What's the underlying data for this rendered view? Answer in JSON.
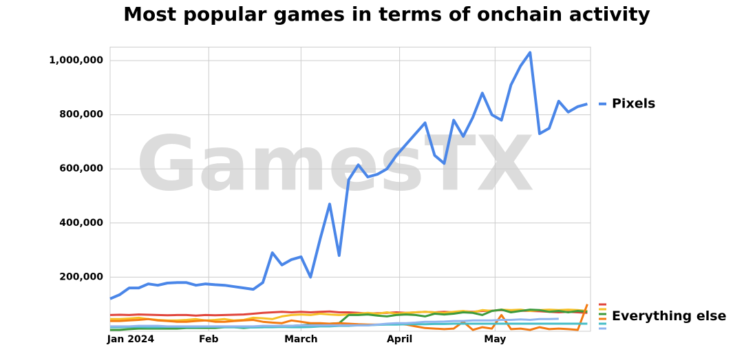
{
  "chart_data": {
    "type": "line",
    "title": "Most popular games in terms of onchain activity",
    "watermark": "GamesTX",
    "x": [
      0,
      3,
      6,
      9,
      12,
      15,
      18,
      21,
      24,
      27,
      30,
      33,
      36,
      39,
      42,
      45,
      48,
      51,
      54,
      57,
      60,
      63,
      66,
      69,
      72,
      75,
      78,
      81,
      84,
      87,
      90,
      93,
      96,
      99,
      102,
      105,
      108,
      111,
      114,
      117,
      120,
      123,
      126,
      129,
      132,
      135,
      138,
      141,
      144,
      147,
      150
    ],
    "xlim": [
      0,
      151
    ],
    "xticks": [
      {
        "value": 0,
        "label": "Jan 2024"
      },
      {
        "value": 31,
        "label": "Feb"
      },
      {
        "value": 60,
        "label": "March"
      },
      {
        "value": 91,
        "label": "April"
      },
      {
        "value": 121,
        "label": "May"
      }
    ],
    "ylim": [
      0,
      1050000
    ],
    "yticks": [
      {
        "value": 200000,
        "label": "200,000"
      },
      {
        "value": 400000,
        "label": "400,000"
      },
      {
        "value": 600000,
        "label": "600,000"
      },
      {
        "value": 800000,
        "label": "800,000"
      },
      {
        "value": 1000000,
        "label": "1,000,000"
      }
    ],
    "grid": true,
    "series": [
      {
        "name": "Pixels",
        "color": "#4a86e8",
        "values": [
          120000,
          135000,
          160000,
          160000,
          175000,
          170000,
          178000,
          180000,
          180000,
          170000,
          175000,
          172000,
          170000,
          165000,
          160000,
          155000,
          180000,
          290000,
          245000,
          265000,
          275000,
          200000,
          340000,
          470000,
          280000,
          560000,
          615000,
          570000,
          580000,
          600000,
          650000,
          690000,
          730000,
          770000,
          650000,
          620000,
          780000,
          720000,
          790000,
          880000,
          800000,
          780000,
          910000,
          980000,
          1030000,
          730000,
          750000,
          850000,
          810000,
          830000,
          840000
        ]
      },
      {
        "name": "Everything else",
        "lines": [
          {
            "color": "#e0443a",
            "values": [
              60000,
              61000,
              60000,
              62000,
              61000,
              60000,
              59000,
              60000,
              60000,
              58000,
              60000,
              59000,
              60000,
              61000,
              62000,
              65000,
              68000,
              70000,
              72000,
              70000,
              72000,
              70000,
              72000,
              73000,
              70000,
              70000,
              68000,
              66000,
              67000,
              68000,
              70000,
              68000,
              70000,
              72000,
              70000,
              72000,
              70000,
              74000,
              72000,
              75000,
              76000,
              78000,
              75000,
              76000,
              75000,
              74000,
              72000,
              70000,
              72000,
              70000,
              68000
            ]
          },
          {
            "color": "#f6c026",
            "values": [
              45000,
              45000,
              47000,
              50000,
              45000,
              42000,
              40000,
              40000,
              42000,
              45000,
              40000,
              42000,
              45000,
              40000,
              42000,
              50000,
              48000,
              45000,
              55000,
              60000,
              62000,
              60000,
              65000,
              62000,
              60000,
              62000,
              65000,
              68000,
              65000,
              70000,
              65000,
              68000,
              70000,
              72000,
              70000,
              68000,
              72000,
              75000,
              70000,
              78000,
              75000,
              80000,
              78000,
              80000,
              75000,
              78000,
              80000,
              78000,
              80000,
              78000,
              75000
            ]
          },
          {
            "color": "#3c9a3c",
            "values": [
              5000,
              5000,
              8000,
              10000,
              10000,
              10000,
              10000,
              10000,
              12000,
              12000,
              12000,
              12000,
              15000,
              15000,
              12000,
              15000,
              15000,
              18000,
              20000,
              20000,
              22000,
              25000,
              25000,
              28000,
              30000,
              60000,
              60000,
              62000,
              58000,
              55000,
              60000,
              62000,
              60000,
              55000,
              65000,
              62000,
              65000,
              70000,
              68000,
              60000,
              75000,
              80000,
              70000,
              75000,
              80000,
              78000,
              72000,
              75000,
              70000,
              75000,
              72000
            ]
          },
          {
            "color": "#f37a12",
            "values": [
              38000,
              38000,
              40000,
              42000,
              45000,
              40000,
              38000,
              35000,
              35000,
              38000,
              40000,
              35000,
              35000,
              38000,
              40000,
              42000,
              35000,
              32000,
              30000,
              40000,
              35000,
              30000,
              30000,
              28000,
              30000,
              28000,
              26000,
              25000,
              25000,
              26000,
              28000,
              25000,
              18000,
              12000,
              10000,
              8000,
              10000,
              35000,
              5000,
              15000,
              10000,
              60000,
              8000,
              10000,
              5000,
              15000,
              8000,
              10000,
              8000,
              5000,
              100000
            ]
          },
          {
            "color": "#46bdc6",
            "values": [
              15000,
              15000,
              16000,
              16000,
              15000,
              15000,
              16000,
              16000,
              15000,
              15000,
              16000,
              16000,
              15000,
              15000,
              14000,
              14000,
              15000,
              15000,
              16000,
              15000,
              15000,
              16000,
              18000,
              18000,
              20000,
              20000,
              22000,
              22000,
              24000,
              25000,
              25000,
              26000,
              26000,
              26000,
              27000,
              27000,
              28000,
              28000,
              28000,
              28000,
              28000,
              28000,
              28000,
              28000,
              28000,
              28000,
              28000,
              28000,
              28000,
              28000,
              28000
            ]
          },
          {
            "color": "#8fb4ee",
            "values": [
              18000,
              18000,
              18000,
              20000,
              20000,
              20000,
              18000,
              18000,
              18000,
              18000,
              18000,
              18000,
              18000,
              18000,
              18000,
              18000,
              20000,
              20000,
              20000,
              20000,
              22000,
              22000,
              22000,
              22000,
              22000,
              22000,
              22000,
              22000,
              25000,
              28000,
              30000,
              30000,
              32000,
              35000,
              35000,
              36000,
              38000,
              38000,
              40000,
              40000,
              40000,
              42000,
              42000,
              44000,
              42000,
              45000,
              45000,
              46000,
              null,
              null,
              null
            ]
          }
        ]
      }
    ]
  }
}
